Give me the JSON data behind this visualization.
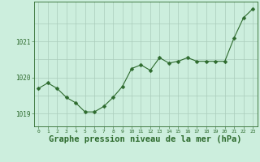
{
  "hours": [
    0,
    1,
    2,
    3,
    4,
    5,
    6,
    7,
    8,
    9,
    10,
    11,
    12,
    13,
    14,
    15,
    16,
    17,
    18,
    19,
    20,
    21,
    22,
    23
  ],
  "pressure": [
    1019.7,
    1019.85,
    1019.7,
    1019.45,
    1019.3,
    1019.05,
    1019.05,
    1019.2,
    1019.45,
    1019.75,
    1020.25,
    1020.35,
    1020.2,
    1020.55,
    1020.4,
    1020.45,
    1020.55,
    1020.45,
    1020.45,
    1020.45,
    1020.45,
    1021.1,
    1021.65,
    1021.9
  ],
  "line_color": "#2d6a2d",
  "marker_color": "#2d6a2d",
  "bg_color": "#cceedd",
  "grid_color_v": "#aaccbb",
  "grid_color_h": "#aaccbb",
  "title": "Graphe pression niveau de la mer (hPa)",
  "ylabel_values": [
    1019,
    1020,
    1021
  ],
  "ylim": [
    1018.65,
    1022.1
  ],
  "xlim": [
    -0.5,
    23.5
  ],
  "tick_label_color": "#2d6a2d",
  "title_color": "#2d6a2d",
  "title_fontsize": 7.5,
  "axis_color": "#2d6a2d",
  "marker_size": 2.5,
  "line_width": 0.8
}
